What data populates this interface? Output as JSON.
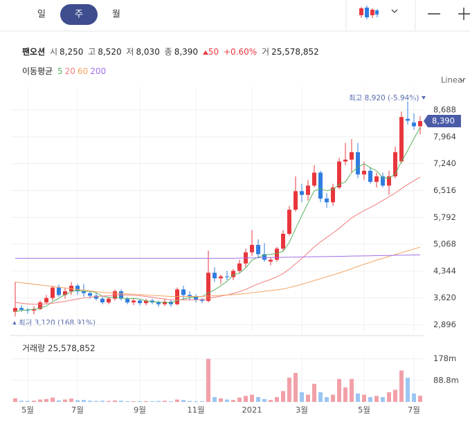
{
  "ui": {
    "tabs": [
      "일",
      "주",
      "월"
    ],
    "selected_tab": 1,
    "scale_mode": "Linear"
  },
  "header": {
    "name": "팬오션",
    "fields": [
      {
        "label": "시",
        "value": "8,250"
      },
      {
        "label": "고",
        "value": "8,520"
      },
      {
        "label": "저",
        "value": "8,030"
      },
      {
        "label": "종",
        "value": "8,390"
      }
    ],
    "change": "50",
    "change_pct": "+0.60%",
    "volume_label": "거",
    "volume": "25,578,852",
    "ma_title": "이동평균"
  },
  "chart_data": [
    {
      "type": "candlestick",
      "categories": [
        null,
        null,
        "5월",
        null,
        null,
        null,
        null,
        null,
        null,
        null,
        "7월",
        null,
        null,
        null,
        null,
        null,
        null,
        null,
        null,
        null,
        "9월",
        null,
        null,
        null,
        null,
        null,
        null,
        null,
        null,
        "11월",
        null,
        null,
        null,
        null,
        null,
        null,
        null,
        null,
        "2021",
        null,
        null,
        null,
        null,
        null,
        null,
        null,
        "3월",
        null,
        null,
        null,
        null,
        null,
        null,
        null,
        null,
        null,
        "5월",
        null,
        null,
        null,
        null,
        null,
        null,
        null,
        "7월",
        null
      ],
      "open": [
        3250,
        3350,
        3300,
        3280,
        3320,
        3500,
        3620,
        3900,
        3700,
        3800,
        3950,
        3800,
        3750,
        3680,
        3600,
        3500,
        3600,
        3800,
        3600,
        3500,
        3550,
        3480,
        3550,
        3500,
        3450,
        3520,
        3450,
        3850,
        3700,
        3650,
        3580,
        3540,
        4300,
        4150,
        4200,
        4180,
        4350,
        4550,
        4850,
        5050,
        4800,
        4600,
        4650,
        4950,
        5350,
        6000,
        6500,
        6400,
        6650,
        7000,
        6300,
        6200,
        6600,
        7300,
        7350,
        7550,
        6950,
        7050,
        6750,
        6900,
        6650,
        6900,
        7300,
        8450,
        8350,
        8250
      ],
      "high": [
        4050,
        3420,
        3350,
        3400,
        3550,
        3700,
        3950,
        3980,
        3900,
        4050,
        4000,
        4000,
        3800,
        3750,
        3650,
        3650,
        3850,
        3850,
        3650,
        3600,
        3580,
        3600,
        3600,
        3550,
        3600,
        3560,
        3900,
        3950,
        3800,
        3720,
        3620,
        4900,
        4450,
        4250,
        4350,
        4400,
        4650,
        4950,
        5450,
        5200,
        5100,
        4700,
        5000,
        5450,
        6100,
        6900,
        6700,
        6800,
        7200,
        7050,
        6450,
        6700,
        7400,
        7800,
        7900,
        7800,
        7300,
        7150,
        7000,
        7000,
        7050,
        7700,
        8650,
        8920,
        8600,
        8520
      ],
      "low": [
        3120,
        3250,
        3200,
        3180,
        3300,
        3450,
        3550,
        3650,
        3600,
        3700,
        3700,
        3650,
        3600,
        3550,
        3450,
        3450,
        3550,
        3550,
        3450,
        3430,
        3420,
        3420,
        3450,
        3380,
        3400,
        3380,
        3420,
        3600,
        3550,
        3500,
        3480,
        3500,
        4050,
        4000,
        4100,
        4100,
        4300,
        4450,
        4750,
        4700,
        4600,
        4500,
        4600,
        4900,
        5300,
        5950,
        6200,
        6250,
        6600,
        6200,
        6050,
        6100,
        6550,
        7200,
        7000,
        6850,
        6800,
        6700,
        6600,
        6600,
        6400,
        6850,
        7250,
        8300,
        8150,
        8030
      ],
      "close": [
        3350,
        3300,
        3280,
        3320,
        3500,
        3620,
        3900,
        3700,
        3800,
        3950,
        3800,
        3750,
        3680,
        3600,
        3500,
        3600,
        3800,
        3600,
        3500,
        3550,
        3480,
        3550,
        3500,
        3450,
        3520,
        3450,
        3850,
        3700,
        3650,
        3580,
        3540,
        4300,
        4150,
        4200,
        4180,
        4350,
        4550,
        4850,
        5050,
        4800,
        4650,
        4650,
        4950,
        5350,
        6000,
        6500,
        6400,
        6650,
        7000,
        6300,
        6200,
        6600,
        7300,
        7350,
        7550,
        6950,
        7050,
        6750,
        6900,
        6650,
        6900,
        7550,
        8500,
        8400,
        8250,
        8390
      ],
      "up_color": "#e8363d",
      "down_color": "#2f7de1",
      "series": [
        {
          "name": "5",
          "color": "#57b35a",
          "values": [
            3250,
            3280,
            3300,
            3310,
            3350,
            3400,
            3520,
            3610,
            3710,
            3790,
            3830,
            3800,
            3800,
            3760,
            3670,
            3630,
            3640,
            3620,
            3600,
            3610,
            3590,
            3540,
            3520,
            3510,
            3500,
            3490,
            3550,
            3590,
            3630,
            3650,
            3660,
            3750,
            3840,
            3950,
            4070,
            4240,
            4290,
            4430,
            4640,
            4720,
            4780,
            4800,
            4820,
            4880,
            5120,
            5490,
            5840,
            6180,
            6510,
            6570,
            6510,
            6550,
            6680,
            6750,
            7000,
            7150,
            7240,
            7130,
            7050,
            6860,
            6850,
            6960,
            7300,
            7600,
            7920,
            8220
          ]
        },
        {
          "name": "20",
          "color": "#f07c7c",
          "values": [
            3500,
            3480,
            3460,
            3450,
            3450,
            3460,
            3480,
            3500,
            3530,
            3560,
            3590,
            3620,
            3640,
            3660,
            3670,
            3680,
            3700,
            3700,
            3700,
            3690,
            3680,
            3660,
            3640,
            3610,
            3590,
            3570,
            3570,
            3570,
            3570,
            3570,
            3570,
            3600,
            3640,
            3670,
            3700,
            3740,
            3790,
            3850,
            3930,
            4000,
            4060,
            4120,
            4190,
            4280,
            4400,
            4540,
            4680,
            4840,
            5000,
            5130,
            5250,
            5370,
            5500,
            5640,
            5780,
            5880,
            5980,
            6060,
            6150,
            6250,
            6350,
            6450,
            6570,
            6680,
            6780,
            6880
          ]
        },
        {
          "name": "60",
          "color": "#f5a25d",
          "values": [
            4050,
            4030,
            4010,
            3990,
            3970,
            3950,
            3930,
            3910,
            3890,
            3870,
            3850,
            3830,
            3810,
            3790,
            3770,
            3760,
            3750,
            3740,
            3730,
            3720,
            3710,
            3700,
            3690,
            3680,
            3670,
            3660,
            3660,
            3660,
            3660,
            3660,
            3660,
            3670,
            3680,
            3690,
            3700,
            3710,
            3720,
            3740,
            3760,
            3780,
            3800,
            3820,
            3840,
            3860,
            3900,
            3940,
            3990,
            4040,
            4090,
            4140,
            4190,
            4240,
            4290,
            4350,
            4410,
            4470,
            4530,
            4580,
            4640,
            4690,
            4740,
            4790,
            4840,
            4890,
            4940,
            4990
          ]
        },
        {
          "name": "200",
          "color": "#a06ee8",
          "values": [
            4690,
            4690,
            4690,
            4690,
            4690,
            4690,
            4690,
            4690,
            4690,
            4690,
            4690,
            4690,
            4690,
            4690,
            4690,
            4690,
            4690,
            4690,
            4690,
            4690,
            4690,
            4690,
            4690,
            4690,
            4690,
            4690,
            4690,
            4690,
            4690,
            4690,
            4690,
            4690,
            4690,
            4690,
            4690,
            4690,
            4695,
            4698,
            4701,
            4704,
            4707,
            4710,
            4713,
            4716,
            4719,
            4722,
            4725,
            4728,
            4731,
            4734,
            4737,
            4740,
            4743,
            4746,
            4749,
            4752,
            4755,
            4758,
            4761,
            4764,
            4767,
            4770,
            4773,
            4776,
            4779,
            4782
          ]
        }
      ],
      "ylim": [
        2700,
        9230
      ],
      "yticks": [
        {
          "value": 2896,
          "label": "2,896"
        },
        {
          "value": 3620,
          "label": "3,620"
        },
        {
          "value": 4344,
          "label": "4,344"
        },
        {
          "value": 5068,
          "label": "5,068"
        },
        {
          "value": 5792,
          "label": "5,792"
        },
        {
          "value": 6516,
          "label": "6,516"
        },
        {
          "value": 7240,
          "label": "7,240"
        },
        {
          "value": 7964,
          "label": "7,964"
        },
        {
          "value": 8688,
          "label": "8,688"
        }
      ],
      "grid": true,
      "current_price": {
        "value": 8390,
        "label": "8,390"
      },
      "annotations": {
        "high": "최고 8,920 (-5.94%)",
        "low": "최저 3,120 (168.91%)"
      }
    },
    {
      "type": "bar",
      "title": "거래량 25,578,852",
      "values": [
        15000000,
        5000000,
        4000000,
        5000000,
        10000000,
        12000000,
        18000000,
        6000000,
        10000000,
        14000000,
        7000000,
        8000000,
        5000000,
        4000000,
        5000000,
        4000000,
        6000000,
        5000000,
        3000000,
        3000000,
        3000000,
        3000000,
        3000000,
        4000000,
        5000000,
        3000000,
        10000000,
        8000000,
        4000000,
        3000000,
        3000000,
        178000000,
        20000000,
        15000000,
        10000000,
        8000000,
        18000000,
        25000000,
        30000000,
        20000000,
        12000000,
        8000000,
        20000000,
        45000000,
        100000000,
        120000000,
        40000000,
        30000000,
        75000000,
        40000000,
        20000000,
        30000000,
        95000000,
        60000000,
        95000000,
        35000000,
        30000000,
        20000000,
        25000000,
        20000000,
        40000000,
        50000000,
        130000000,
        100000000,
        35000000,
        25578852
      ],
      "up_color": "#f2a0a8",
      "down_color": "#9cc6f2",
      "ylim": [
        0,
        260000000
      ],
      "yticks": [
        {
          "value": 88800000,
          "label": "88.8m"
        },
        {
          "value": 178000000,
          "label": "178m"
        }
      ],
      "grid": true
    }
  ]
}
